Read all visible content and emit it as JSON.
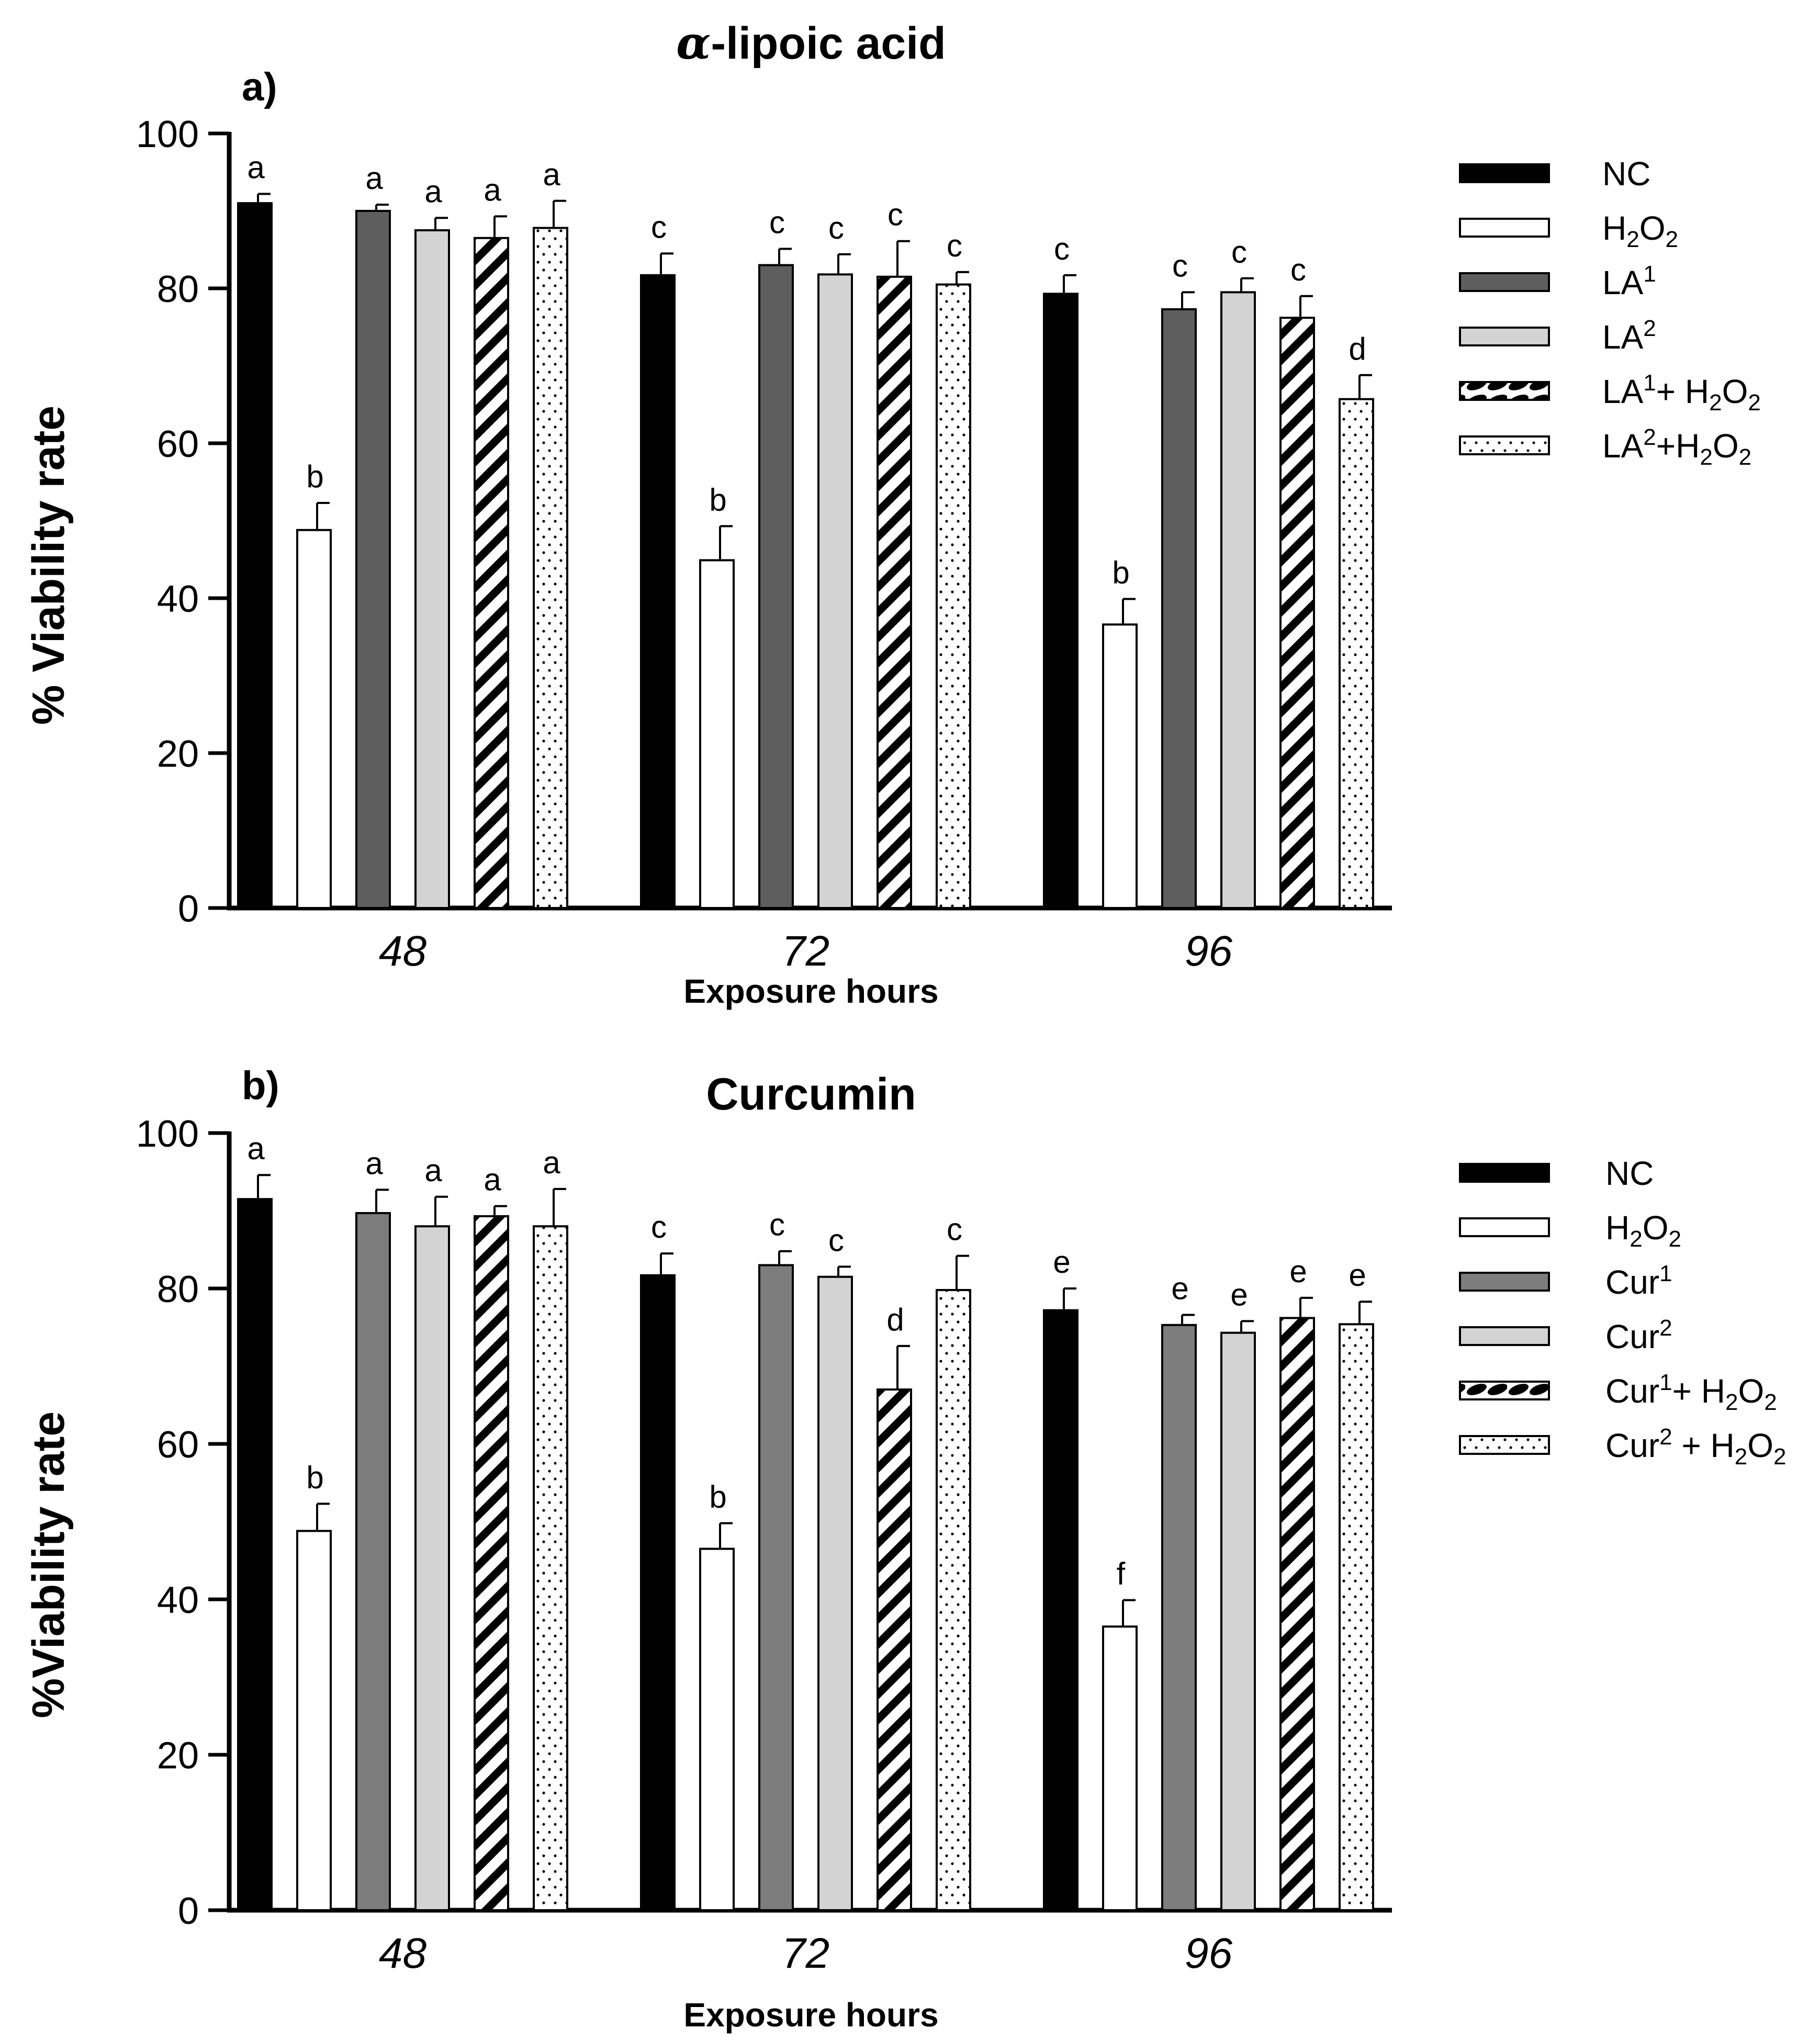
{
  "chart_data": [
    {
      "type": "bar",
      "panel_label": "a)",
      "title_prefix": "α",
      "title_rest": "-lipoic acid",
      "xlabel": "Exposure hours",
      "ylabel": "% Viability rate",
      "ylim": [
        0,
        100
      ],
      "yticks": [
        "0",
        "20",
        "40",
        "60",
        "80",
        "100"
      ],
      "categories": [
        "48",
        "72",
        "96"
      ],
      "series": [
        {
          "name": "NC",
          "legend": [
            "NC"
          ],
          "style": "black",
          "values": [
            91,
            81.7,
            79.3
          ],
          "errors": [
            1.2,
            2.8,
            2.4
          ],
          "letters": [
            "a",
            "c",
            "c"
          ]
        },
        {
          "name": "H2O2",
          "legend": [
            "H",
            "2",
            "O",
            "2"
          ],
          "style": "white",
          "values": [
            48.8,
            44.9,
            36.6
          ],
          "errors": [
            3.5,
            4.4,
            3.3
          ],
          "letters": [
            "b",
            "b",
            "b"
          ]
        },
        {
          "name": "LA1",
          "legend": [
            "LA",
            "1"
          ],
          "style": "dark",
          "values": [
            90,
            83,
            77.3
          ],
          "errors": [
            0.8,
            2.1,
            2.2
          ],
          "letters": [
            "a",
            "c",
            "c"
          ]
        },
        {
          "name": "LA2",
          "legend": [
            "LA",
            "2"
          ],
          "style": "light",
          "values": [
            87.5,
            81.8,
            79.5
          ],
          "errors": [
            1.6,
            2.6,
            1.8
          ],
          "letters": [
            "a",
            "c",
            "c"
          ]
        },
        {
          "name": "LA1+ H2O2",
          "legend": [
            "LA",
            "1",
            "+ H",
            "2",
            "O",
            "2"
          ],
          "style": "hatch",
          "values": [
            86.5,
            81.5,
            76.2
          ],
          "errors": [
            2.8,
            4.6,
            2.8
          ],
          "letters": [
            "a",
            "c",
            "c"
          ]
        },
        {
          "name": "LA2+H2O2",
          "legend": [
            "LA",
            "2",
            "+H",
            "2",
            "O",
            "2"
          ],
          "style": "dots",
          "values": [
            87.8,
            80.5,
            65.7
          ],
          "errors": [
            3.5,
            1.6,
            3.1
          ],
          "letters": [
            "a",
            "c",
            "d"
          ]
        }
      ]
    },
    {
      "type": "bar",
      "panel_label": "b)",
      "title_prefix": "",
      "title_rest": "Curcumin",
      "xlabel": "Exposure hours",
      "ylabel": "%Viability rate",
      "ylim": [
        0,
        100
      ],
      "yticks": [
        "0",
        "20",
        "40",
        "60",
        "80",
        "100"
      ],
      "categories": [
        "48",
        "72",
        "96"
      ],
      "series": [
        {
          "name": "NC",
          "legend": [
            "NC"
          ],
          "style": "black",
          "values": [
            91.5,
            81.7,
            77.2
          ],
          "errors": [
            3.1,
            2.8,
            2.8
          ],
          "letters": [
            "a",
            "c",
            "e"
          ]
        },
        {
          "name": "H2O2",
          "legend": [
            "H",
            "2",
            "O",
            "2"
          ],
          "style": "white",
          "values": [
            48.8,
            46.5,
            36.5
          ],
          "errors": [
            3.5,
            3.3,
            3.4
          ],
          "letters": [
            "b",
            "b",
            "f"
          ]
        },
        {
          "name": "Cur1",
          "legend": [
            "Cur",
            "1"
          ],
          "style": "mid",
          "values": [
            89.7,
            83,
            75.3
          ],
          "errors": [
            3,
            1.8,
            1.3
          ],
          "letters": [
            "a",
            "c",
            "e"
          ]
        },
        {
          "name": "Cur2",
          "legend": [
            "Cur",
            "2"
          ],
          "style": "light",
          "values": [
            88,
            81.5,
            74.3
          ],
          "errors": [
            3.8,
            1.3,
            1.5
          ],
          "letters": [
            "a",
            "c",
            "e"
          ]
        },
        {
          "name": "Cur1+ H2O2",
          "legend": [
            "Cur",
            "1",
            "+ H",
            "2",
            "O",
            "2"
          ],
          "style": "hatch",
          "values": [
            89.3,
            67,
            76.2
          ],
          "errors": [
            1.3,
            5.6,
            2.6
          ],
          "letters": [
            "a",
            "d",
            "e"
          ]
        },
        {
          "name": "Cur2 + H2O2",
          "legend": [
            "Cur",
            "2",
            " + H",
            "2",
            "O",
            "2"
          ],
          "style": "dots",
          "values": [
            88,
            79.8,
            75.4
          ],
          "errors": [
            4.8,
            4.4,
            2.9
          ],
          "letters": [
            "a",
            "c",
            "e"
          ]
        }
      ]
    }
  ]
}
